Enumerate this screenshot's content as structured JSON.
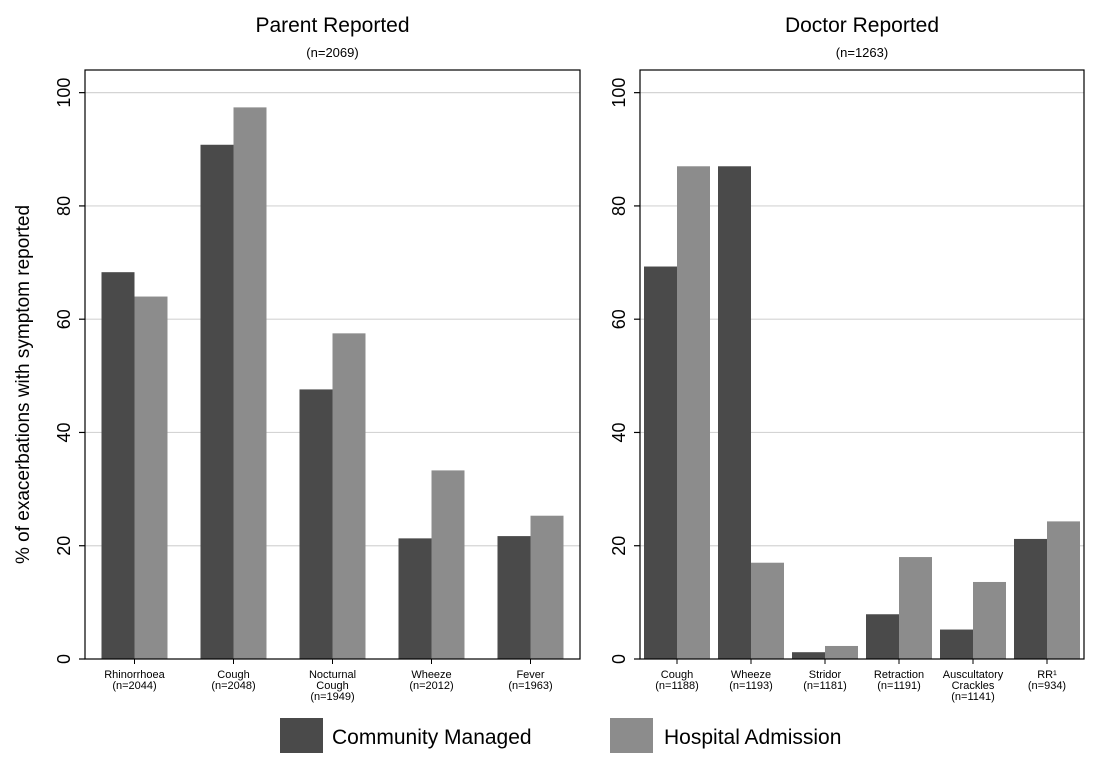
{
  "chart_data": [
    {
      "type": "bar",
      "title": "Parent Reported",
      "subtitle": "(n=2069)",
      "ylabel": "% of exacerbations with symptom reported",
      "ylim": [
        0,
        104
      ],
      "yticks": [
        0,
        20,
        40,
        60,
        80,
        100
      ],
      "grid": true,
      "categories": [
        [
          "Rhinorrhoea",
          "(n=2044)"
        ],
        [
          "Cough",
          "(n=2048)"
        ],
        [
          "Nocturnal",
          "Cough",
          "(n=1949)"
        ],
        [
          "Wheeze",
          "(n=2012)"
        ],
        [
          "Fever",
          "(n=1963)"
        ]
      ],
      "series": [
        {
          "name": "Community Managed",
          "color": "#4a4a4a",
          "values": [
            68.3,
            90.8,
            47.6,
            21.3,
            21.7
          ]
        },
        {
          "name": "Hospital Admission",
          "color": "#8c8c8c",
          "values": [
            64.0,
            97.4,
            57.5,
            33.3,
            25.3
          ]
        }
      ]
    },
    {
      "type": "bar",
      "title": "Doctor Reported",
      "subtitle": "(n=1263)",
      "ylabel": "",
      "ylim": [
        0,
        104
      ],
      "yticks": [
        0,
        20,
        40,
        60,
        80,
        100
      ],
      "grid": true,
      "categories": [
        [
          "Cough",
          "(n=1188)"
        ],
        [
          "Wheeze",
          "(n=1193)"
        ],
        [
          "Stridor",
          "(n=1181)"
        ],
        [
          "Retraction",
          "(n=1191)"
        ],
        [
          "Auscultatory",
          "Crackles",
          "(n=1141)"
        ],
        [
          "RR¹",
          "(n=934)"
        ]
      ],
      "series": [
        {
          "name": "Community Managed",
          "color": "#4a4a4a",
          "values": [
            69.3,
            87.0,
            1.2,
            7.9,
            5.2,
            21.2
          ]
        },
        {
          "name": "Hospital Admission",
          "color": "#8c8c8c",
          "values": [
            87.0,
            17.0,
            2.3,
            18.0,
            13.6,
            24.3
          ]
        }
      ]
    }
  ],
  "legend": {
    "placement": "bottom",
    "items": [
      {
        "label": "Community Managed",
        "color": "#4a4a4a"
      },
      {
        "label": "Hospital Admission",
        "color": "#8c8c8c"
      }
    ]
  }
}
